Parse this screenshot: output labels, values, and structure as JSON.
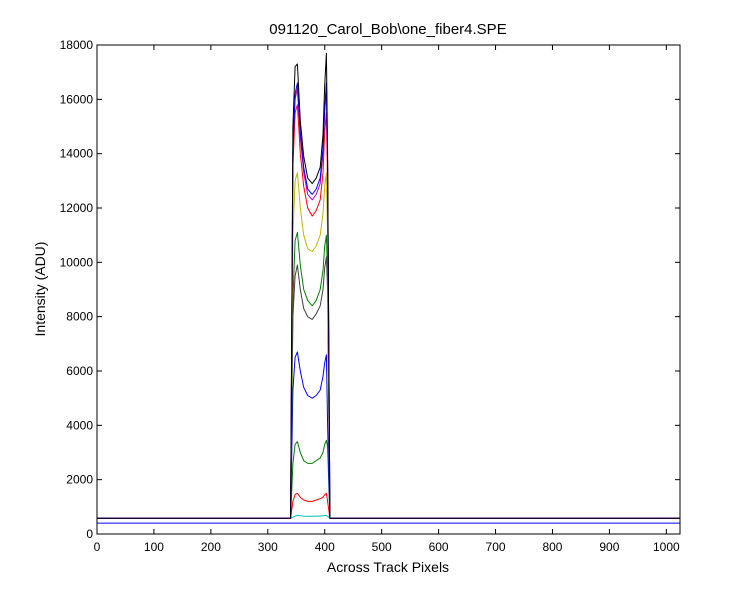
{
  "chart_data": {
    "type": "line",
    "title": "091120_Carol_Bob\\one_fiber4.SPE",
    "xlabel": "Across Track Pixels",
    "ylabel": "Intensity (ADU)",
    "xlim": [
      0,
      1024
    ],
    "ylim": [
      0,
      18000
    ],
    "xticks": [
      0,
      100,
      200,
      300,
      400,
      500,
      600,
      700,
      800,
      900,
      1000
    ],
    "yticks": [
      0,
      2000,
      4000,
      6000,
      8000,
      10000,
      12000,
      14000,
      16000,
      18000
    ],
    "grid": false,
    "legend": "none",
    "x_shared": [
      0,
      340,
      344,
      348,
      352,
      357,
      363,
      370,
      378,
      385,
      392,
      397,
      400,
      403,
      405,
      409,
      1024
    ],
    "series": [
      {
        "color": "#00bfbf",
        "values": [
          580,
          580,
          620,
          650,
          690,
          670,
          660,
          650,
          650,
          660,
          660,
          670,
          690,
          680,
          650,
          580,
          580
        ]
      },
      {
        "color": "#ff0000",
        "values": [
          580,
          580,
          1200,
          1450,
          1500,
          1350,
          1250,
          1200,
          1200,
          1250,
          1300,
          1350,
          1450,
          1500,
          1200,
          580,
          580
        ]
      },
      {
        "color": "#008000",
        "values": [
          580,
          580,
          2600,
          3300,
          3400,
          3000,
          2700,
          2600,
          2600,
          2700,
          2800,
          3000,
          3300,
          3450,
          3200,
          580,
          580
        ]
      },
      {
        "color": "#0000ff",
        "values": [
          580,
          580,
          5300,
          6500,
          6700,
          6000,
          5400,
          5100,
          5000,
          5100,
          5300,
          5800,
          6300,
          6600,
          4000,
          580,
          580
        ]
      },
      {
        "color": "#404040",
        "values": [
          580,
          580,
          8000,
          9500,
          9900,
          9000,
          8300,
          8000,
          7900,
          8100,
          8400,
          9000,
          9800,
          10200,
          9000,
          580,
          580
        ]
      },
      {
        "color": "#008000",
        "values": [
          580,
          580,
          8600,
          10800,
          11100,
          9900,
          9000,
          8600,
          8400,
          8600,
          9000,
          9700,
          10600,
          11000,
          9500,
          580,
          580
        ]
      },
      {
        "color": "#c8b400",
        "values": [
          580,
          580,
          11000,
          13000,
          13300,
          12000,
          11000,
          10500,
          10400,
          10600,
          11000,
          11800,
          12800,
          13300,
          11000,
          580,
          580
        ]
      },
      {
        "color": "#ff0000",
        "values": [
          580,
          580,
          13500,
          15500,
          15800,
          14000,
          12800,
          12000,
          11700,
          11900,
          12300,
          13300,
          14800,
          15500,
          12800,
          580,
          580
        ]
      },
      {
        "color": "#bf00bf",
        "values": [
          580,
          580,
          14000,
          16000,
          16400,
          14600,
          13300,
          12500,
          12300,
          12500,
          12900,
          14000,
          15500,
          16400,
          13500,
          580,
          580
        ]
      },
      {
        "color": "#0000ff",
        "values": [
          580,
          580,
          14200,
          16200,
          16600,
          14800,
          13500,
          12700,
          12500,
          12700,
          13100,
          14200,
          15700,
          16600,
          13600,
          580,
          580
        ]
      },
      {
        "color": "#000000",
        "values": [
          580,
          580,
          15000,
          17200,
          17300,
          15200,
          13900,
          13100,
          12900,
          13100,
          13500,
          14700,
          16500,
          17700,
          14000,
          580,
          580
        ]
      },
      {
        "color": "#0000ff",
        "values": [
          400,
          400,
          400,
          400,
          400,
          400,
          400,
          400,
          400,
          400,
          400,
          400,
          400,
          400,
          400,
          400,
          400
        ]
      }
    ]
  }
}
